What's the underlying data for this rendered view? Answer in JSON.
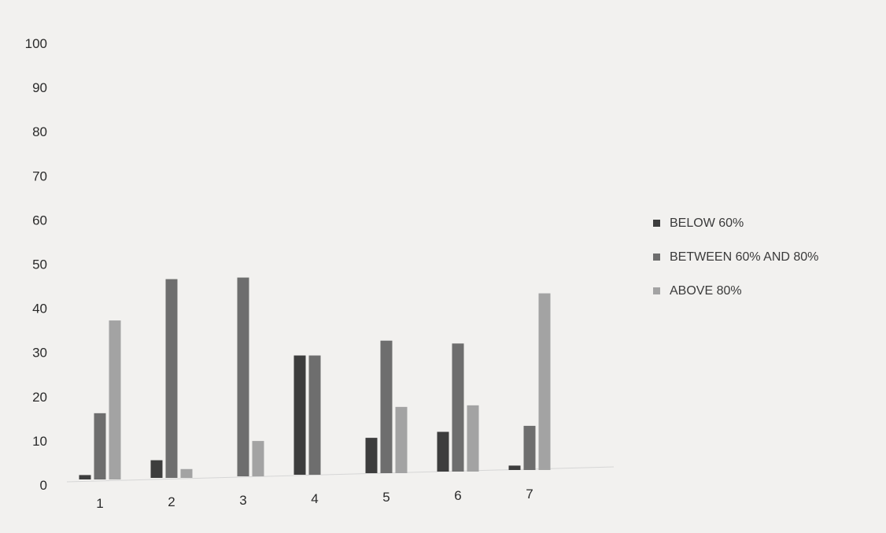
{
  "chart_data": {
    "type": "bar",
    "title": "",
    "xlabel": "",
    "ylabel": "",
    "categories": [
      "1",
      "2",
      "3",
      "4",
      "5",
      "6",
      "7"
    ],
    "y_ticks": [
      "0",
      "10",
      "20",
      "30",
      "40",
      "50",
      "60",
      "70",
      "80",
      "90",
      "100"
    ],
    "ylim": [
      0,
      100
    ],
    "grid": false,
    "legend_position": "right",
    "series": [
      {
        "name": "BELOW 60%",
        "color": "#3d3d3d",
        "values": [
          1,
          4,
          0,
          27,
          8,
          9,
          1
        ]
      },
      {
        "name": "BETWEEN 60% AND 80%",
        "color": "#6e6e6e",
        "values": [
          15,
          45,
          45,
          27,
          30,
          29,
          10
        ]
      },
      {
        "name": "ABOVE 80%",
        "color": "#a3a3a3",
        "values": [
          36,
          2,
          8,
          0,
          15,
          15,
          40
        ]
      }
    ]
  }
}
